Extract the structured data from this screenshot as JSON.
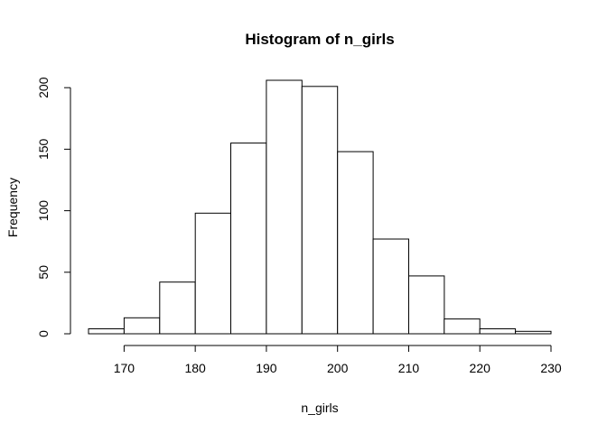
{
  "chart_data": {
    "type": "bar",
    "title": "Histogram of n_girls",
    "xlabel": "n_girls",
    "ylabel": "Frequency",
    "bins": [
      {
        "start": 165,
        "end": 170,
        "count": 4
      },
      {
        "start": 170,
        "end": 175,
        "count": 13
      },
      {
        "start": 175,
        "end": 180,
        "count": 42
      },
      {
        "start": 180,
        "end": 185,
        "count": 98
      },
      {
        "start": 185,
        "end": 190,
        "count": 155
      },
      {
        "start": 190,
        "end": 195,
        "count": 206
      },
      {
        "start": 195,
        "end": 200,
        "count": 201
      },
      {
        "start": 200,
        "end": 205,
        "count": 148
      },
      {
        "start": 205,
        "end": 210,
        "count": 77
      },
      {
        "start": 210,
        "end": 215,
        "count": 47
      },
      {
        "start": 215,
        "end": 220,
        "count": 12
      },
      {
        "start": 220,
        "end": 225,
        "count": 4
      },
      {
        "start": 225,
        "end": 230,
        "count": 2
      }
    ],
    "xlim": [
      165,
      230
    ],
    "ylim": [
      0,
      206
    ],
    "xticks": [
      170,
      180,
      190,
      200,
      210,
      220,
      230
    ],
    "yticks": [
      0,
      50,
      100,
      150,
      200
    ],
    "grid": false,
    "colors": {
      "bar_fill": "#ffffff",
      "bar_stroke": "#000000"
    }
  }
}
